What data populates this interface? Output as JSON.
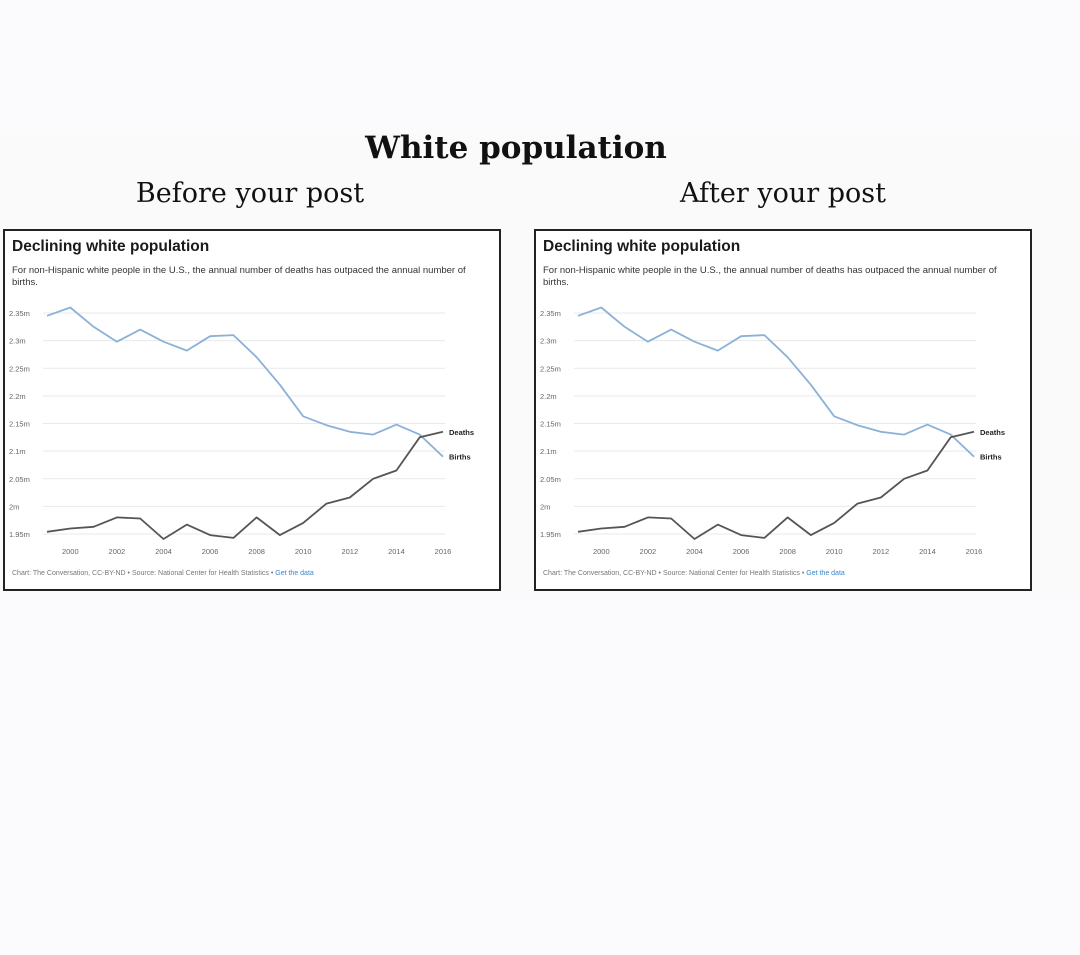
{
  "page": {
    "title": "White population",
    "panels": [
      {
        "caption": "Before your post"
      },
      {
        "caption": "After your post"
      }
    ]
  },
  "chart_data": [
    {
      "type": "line",
      "title": "Declining white population",
      "subtitle": "For non-Hispanic white people in the U.S., the annual number of deaths has outpaced the annual number of births.",
      "y_ticks": [
        "1.95m",
        "2m",
        "2.05m",
        "2.1m",
        "2.15m",
        "2.2m",
        "2.25m",
        "2.3m",
        "2.35m"
      ],
      "x_ticks": [
        "2000",
        "2002",
        "2004",
        "2006",
        "2008",
        "2010",
        "2012",
        "2014",
        "2016"
      ],
      "ylim": [
        1.95,
        2.35
      ],
      "grid": true,
      "legend": "inline-right",
      "series": [
        {
          "name": "Births",
          "color": "#8cb1d9",
          "x": [
            1999,
            2000,
            2001,
            2002,
            2003,
            2004,
            2005,
            2006,
            2007,
            2008,
            2009,
            2010,
            2011,
            2012,
            2013,
            2014,
            2015,
            2016
          ],
          "y": [
            2.345,
            2.36,
            2.325,
            2.298,
            2.32,
            2.298,
            2.282,
            2.308,
            2.31,
            2.27,
            2.22,
            2.163,
            2.147,
            2.135,
            2.13,
            2.148,
            2.13,
            2.09
          ]
        },
        {
          "name": "Deaths",
          "color": "#555555",
          "x": [
            1999,
            2000,
            2001,
            2002,
            2003,
            2004,
            2005,
            2006,
            2007,
            2008,
            2009,
            2010,
            2011,
            2012,
            2013,
            2014,
            2015,
            2016
          ],
          "y": [
            1.954,
            1.96,
            1.963,
            1.98,
            1.978,
            1.941,
            1.967,
            1.948,
            1.943,
            1.98,
            1.948,
            1.97,
            2.005,
            2.016,
            2.05,
            2.065,
            2.125,
            2.135
          ]
        }
      ],
      "credit": "Chart: The Conversation, CC-BY-ND • Source: National Center for Health Statistics •",
      "credit_link": "Get the data"
    },
    {
      "type": "line",
      "title": "Declining white population",
      "subtitle": "For non-Hispanic white people in the U.S., the annual number of deaths has outpaced the annual number of births.",
      "y_ticks": [
        "1.95m",
        "2m",
        "2.05m",
        "2.1m",
        "2.15m",
        "2.2m",
        "2.25m",
        "2.3m",
        "2.35m"
      ],
      "x_ticks": [
        "2000",
        "2002",
        "2004",
        "2006",
        "2008",
        "2010",
        "2012",
        "2014",
        "2016"
      ],
      "ylim": [
        1.95,
        2.35
      ],
      "grid": true,
      "legend": "inline-right",
      "series": [
        {
          "name": "Births",
          "color": "#8cb1d9",
          "x": [
            1999,
            2000,
            2001,
            2002,
            2003,
            2004,
            2005,
            2006,
            2007,
            2008,
            2009,
            2010,
            2011,
            2012,
            2013,
            2014,
            2015,
            2016
          ],
          "y": [
            2.345,
            2.36,
            2.325,
            2.298,
            2.32,
            2.298,
            2.282,
            2.308,
            2.31,
            2.27,
            2.22,
            2.163,
            2.147,
            2.135,
            2.13,
            2.148,
            2.13,
            2.09
          ]
        },
        {
          "name": "Deaths",
          "color": "#555555",
          "x": [
            1999,
            2000,
            2001,
            2002,
            2003,
            2004,
            2005,
            2006,
            2007,
            2008,
            2009,
            2010,
            2011,
            2012,
            2013,
            2014,
            2015,
            2016
          ],
          "y": [
            1.954,
            1.96,
            1.963,
            1.98,
            1.978,
            1.941,
            1.967,
            1.948,
            1.943,
            1.98,
            1.948,
            1.97,
            2.005,
            2.016,
            2.05,
            2.065,
            2.125,
            2.135
          ]
        }
      ],
      "credit": "Chart: The Conversation, CC-BY-ND • Source: National Center for Health Statistics •",
      "credit_link": "Get the data"
    }
  ]
}
